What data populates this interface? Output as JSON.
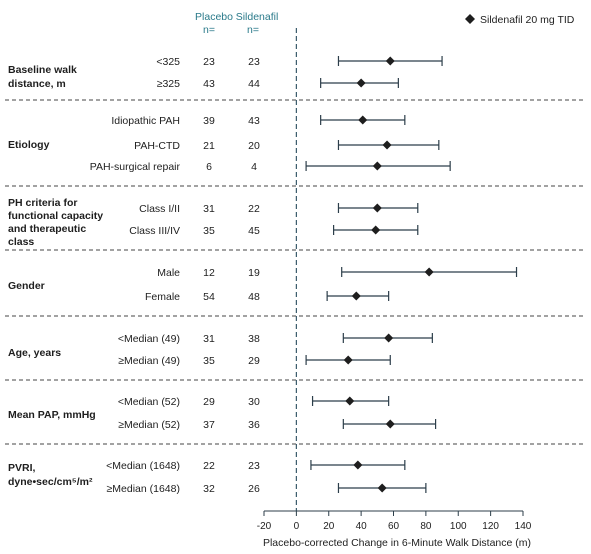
{
  "chart_data": {
    "type": "forest",
    "legend": "Sildenafil 20 mg TID",
    "legend_position": "top-right",
    "column_headers": {
      "placebo": "Placebo",
      "sildenafil": "Sildenafil",
      "n_label": "n="
    },
    "xlabel": "Placebo-corrected Change in 6-Minute Walk Distance (m)",
    "xlim": [
      -20,
      140
    ],
    "xticks": [
      "-20",
      "0",
      "20",
      "40",
      "60",
      "80",
      "100",
      "120",
      "140"
    ],
    "reference_line": 0,
    "groups": [
      {
        "label": [
          "Baseline walk",
          "distance, m"
        ],
        "rows": [
          {
            "label": "<325",
            "placebo_n": "23",
            "sildenafil_n": "23",
            "estimate": 58,
            "ci_low": 26,
            "ci_high": 90
          },
          {
            "label": "≥325",
            "placebo_n": "43",
            "sildenafil_n": "44",
            "estimate": 40,
            "ci_low": 15,
            "ci_high": 63
          }
        ]
      },
      {
        "label": [
          "Etiology"
        ],
        "rows": [
          {
            "label": "Idiopathic PAH",
            "placebo_n": "39",
            "sildenafil_n": "43",
            "estimate": 41,
            "ci_low": 15,
            "ci_high": 67
          },
          {
            "label": "PAH-CTD",
            "placebo_n": "21",
            "sildenafil_n": "20",
            "estimate": 56,
            "ci_low": 26,
            "ci_high": 88
          },
          {
            "label": "PAH-surgical repair",
            "placebo_n": "6",
            "sildenafil_n": "4",
            "estimate": 50,
            "ci_low": 6,
            "ci_high": 95
          }
        ]
      },
      {
        "label": [
          "PH criteria for",
          "functional capacity",
          "and therapeutic",
          "class"
        ],
        "rows": [
          {
            "label": "Class I/II",
            "placebo_n": "31",
            "sildenafil_n": "22",
            "estimate": 50,
            "ci_low": 26,
            "ci_high": 75
          },
          {
            "label": "Class III/IV",
            "placebo_n": "35",
            "sildenafil_n": "45",
            "estimate": 49,
            "ci_low": 23,
            "ci_high": 75
          }
        ]
      },
      {
        "label": [
          "Gender"
        ],
        "rows": [
          {
            "label": "Male",
            "placebo_n": "12",
            "sildenafil_n": "19",
            "estimate": 82,
            "ci_low": 28,
            "ci_high": 136
          },
          {
            "label": "Female",
            "placebo_n": "54",
            "sildenafil_n": "48",
            "estimate": 37,
            "ci_low": 19,
            "ci_high": 57
          }
        ]
      },
      {
        "label": [
          "Age, years"
        ],
        "rows": [
          {
            "label": "<Median (49)",
            "placebo_n": "31",
            "sildenafil_n": "38",
            "estimate": 57,
            "ci_low": 29,
            "ci_high": 84
          },
          {
            "label": "≥Median (49)",
            "placebo_n": "35",
            "sildenafil_n": "29",
            "estimate": 32,
            "ci_low": 6,
            "ci_high": 58
          }
        ]
      },
      {
        "label": [
          "Mean PAP, mmHg"
        ],
        "rows": [
          {
            "label": "<Median (52)",
            "placebo_n": "29",
            "sildenafil_n": "30",
            "estimate": 33,
            "ci_low": 10,
            "ci_high": 57
          },
          {
            "label": "≥Median (52)",
            "placebo_n": "37",
            "sildenafil_n": "36",
            "estimate": 58,
            "ci_low": 29,
            "ci_high": 86
          }
        ]
      },
      {
        "label": [
          "PVRI,",
          "dyne•sec/cm⁵/m²"
        ],
        "rows": [
          {
            "label": "<Median (1648)",
            "placebo_n": "22",
            "sildenafil_n": "23",
            "estimate": 38,
            "ci_low": 9,
            "ci_high": 67
          },
          {
            "label": "≥Median (1648)",
            "placebo_n": "32",
            "sildenafil_n": "26",
            "estimate": 53,
            "ci_low": 26,
            "ci_high": 80
          }
        ]
      }
    ]
  },
  "colors": {
    "ci_line": "#2c3e4a",
    "marker": "#1e1e1e",
    "reference": "#3a5a6a",
    "divider": "#444444",
    "header": "#2a7a8a"
  }
}
